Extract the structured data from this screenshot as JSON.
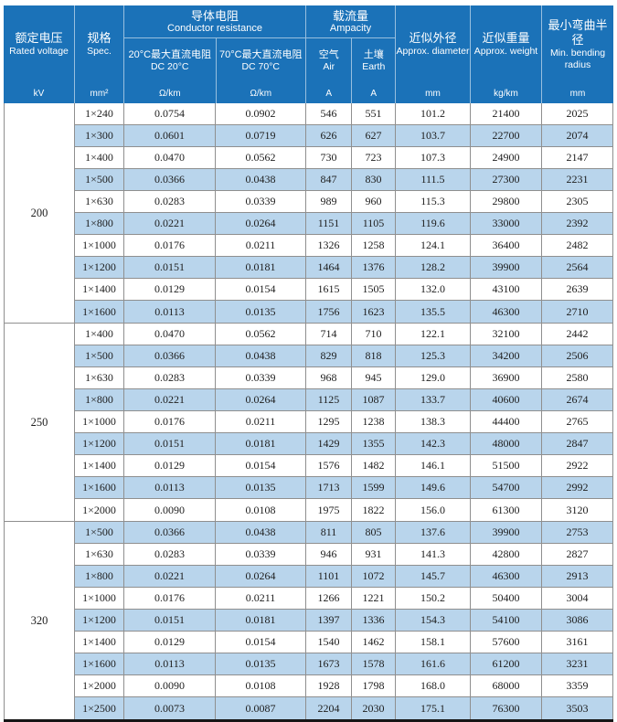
{
  "colors": {
    "header_bg": "#1b72b8",
    "stripe": "#b9d5ec",
    "grid_border": "#8f8f8f",
    "bottom_rule": "#161616",
    "header_text": "#ffffff",
    "body_text": "#1d1d1d"
  },
  "table": {
    "header": {
      "voltage": {
        "zh": "额定电压",
        "en": "Rated voltage",
        "unit": "kV"
      },
      "spec": {
        "zh": "规格",
        "en": "Spec.",
        "unit": "mm²"
      },
      "conductor_resistance": {
        "zh": "导体电阻",
        "en": "Conductor resistance",
        "dc20": {
          "zh": "20°C最大直流电阻",
          "en": "DC 20°C",
          "unit": "Ω/km"
        },
        "dc70": {
          "zh": "70°C最大直流电阻",
          "en": "DC 70°C",
          "unit": "Ω/km"
        }
      },
      "ampacity": {
        "zh": "载流量",
        "en": "Ampacity",
        "air": {
          "zh": "空气",
          "en": "Air",
          "unit": "A"
        },
        "earth": {
          "zh": "土壤",
          "en": "Earth",
          "unit": "A"
        }
      },
      "diameter": {
        "zh": "近似外径",
        "en": "Approx. diameter",
        "unit": "mm"
      },
      "weight": {
        "zh": "近似重量",
        "en": "Approx. weight",
        "unit": "kg/km"
      },
      "bending": {
        "zh": "最小弯曲半径",
        "en": "Min. bending radius",
        "unit": "mm"
      }
    },
    "column_keys": [
      "spec",
      "dc20-resistance",
      "dc70-resistance",
      "ampacity-air",
      "ampacity-earth",
      "diameter",
      "weight",
      "bending-radius"
    ],
    "groups": [
      {
        "voltage": "200",
        "rows": [
          [
            "1×240",
            "0.0754",
            "0.0902",
            "546",
            "551",
            "101.2",
            "21400",
            "2025"
          ],
          [
            "1×300",
            "0.0601",
            "0.0719",
            "626",
            "627",
            "103.7",
            "22700",
            "2074"
          ],
          [
            "1×400",
            "0.0470",
            "0.0562",
            "730",
            "723",
            "107.3",
            "24900",
            "2147"
          ],
          [
            "1×500",
            "0.0366",
            "0.0438",
            "847",
            "830",
            "111.5",
            "27300",
            "2231"
          ],
          [
            "1×630",
            "0.0283",
            "0.0339",
            "989",
            "960",
            "115.3",
            "29800",
            "2305"
          ],
          [
            "1×800",
            "0.0221",
            "0.0264",
            "1151",
            "1105",
            "119.6",
            "33000",
            "2392"
          ],
          [
            "1×1000",
            "0.0176",
            "0.0211",
            "1326",
            "1258",
            "124.1",
            "36400",
            "2482"
          ],
          [
            "1×1200",
            "0.0151",
            "0.0181",
            "1464",
            "1376",
            "128.2",
            "39900",
            "2564"
          ],
          [
            "1×1400",
            "0.0129",
            "0.0154",
            "1615",
            "1505",
            "132.0",
            "43100",
            "2639"
          ],
          [
            "1×1600",
            "0.0113",
            "0.0135",
            "1756",
            "1623",
            "135.5",
            "46300",
            "2710"
          ]
        ]
      },
      {
        "voltage": "250",
        "rows": [
          [
            "1×400",
            "0.0470",
            "0.0562",
            "714",
            "710",
            "122.1",
            "32100",
            "2442"
          ],
          [
            "1×500",
            "0.0366",
            "0.0438",
            "829",
            "818",
            "125.3",
            "34200",
            "2506"
          ],
          [
            "1×630",
            "0.0283",
            "0.0339",
            "968",
            "945",
            "129.0",
            "36900",
            "2580"
          ],
          [
            "1×800",
            "0.0221",
            "0.0264",
            "1125",
            "1087",
            "133.7",
            "40600",
            "2674"
          ],
          [
            "1×1000",
            "0.0176",
            "0.0211",
            "1295",
            "1238",
            "138.3",
            "44400",
            "2765"
          ],
          [
            "1×1200",
            "0.0151",
            "0.0181",
            "1429",
            "1355",
            "142.3",
            "48000",
            "2847"
          ],
          [
            "1×1400",
            "0.0129",
            "0.0154",
            "1576",
            "1482",
            "146.1",
            "51500",
            "2922"
          ],
          [
            "1×1600",
            "0.0113",
            "0.0135",
            "1713",
            "1599",
            "149.6",
            "54700",
            "2992"
          ],
          [
            "1×2000",
            "0.0090",
            "0.0108",
            "1975",
            "1822",
            "156.0",
            "61300",
            "3120"
          ]
        ]
      },
      {
        "voltage": "320",
        "rows": [
          [
            "1×500",
            "0.0366",
            "0.0438",
            "811",
            "805",
            "137.6",
            "39900",
            "2753"
          ],
          [
            "1×630",
            "0.0283",
            "0.0339",
            "946",
            "931",
            "141.3",
            "42800",
            "2827"
          ],
          [
            "1×800",
            "0.0221",
            "0.0264",
            "1101",
            "1072",
            "145.7",
            "46300",
            "2913"
          ],
          [
            "1×1000",
            "0.0176",
            "0.0211",
            "1266",
            "1221",
            "150.2",
            "50400",
            "3004"
          ],
          [
            "1×1200",
            "0.0151",
            "0.0181",
            "1397",
            "1336",
            "154.3",
            "54100",
            "3086"
          ],
          [
            "1×1400",
            "0.0129",
            "0.0154",
            "1540",
            "1462",
            "158.1",
            "57600",
            "3161"
          ],
          [
            "1×1600",
            "0.0113",
            "0.0135",
            "1673",
            "1578",
            "161.6",
            "61200",
            "3231"
          ],
          [
            "1×2000",
            "0.0090",
            "0.0108",
            "1928",
            "1798",
            "168.0",
            "68000",
            "3359"
          ],
          [
            "1×2500",
            "0.0073",
            "0.0087",
            "2204",
            "2030",
            "175.1",
            "76300",
            "3503"
          ]
        ]
      }
    ]
  }
}
